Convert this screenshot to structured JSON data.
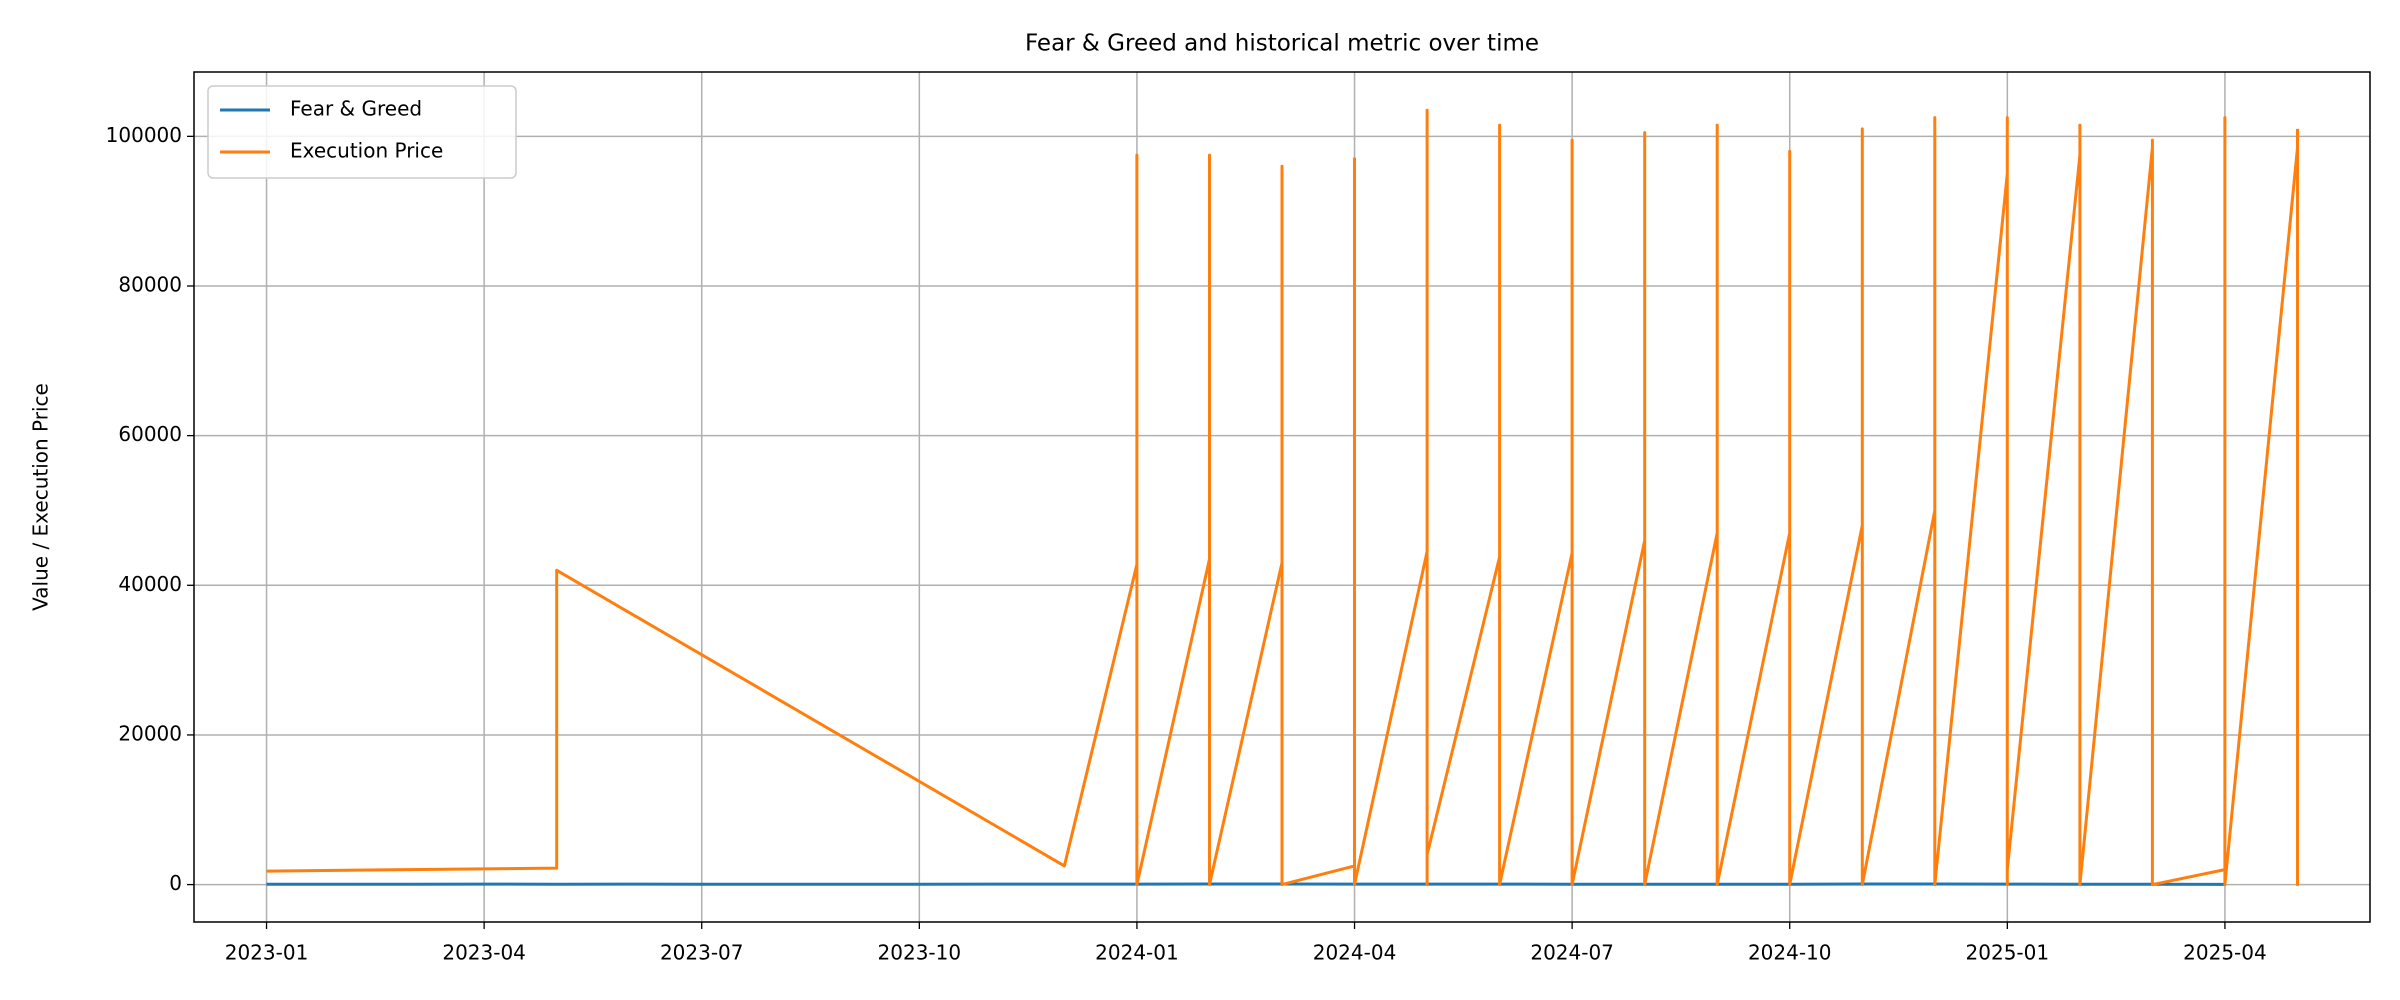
{
  "chart_data": {
    "type": "line",
    "title": "Fear & Greed and historical metric over time",
    "y_label": "Value / Execution Price",
    "xlim": [
      "2022-12",
      "2025-06"
    ],
    "xticks": [
      "2023-01",
      "2023-04",
      "2023-07",
      "2023-10",
      "2024-01",
      "2024-04",
      "2024-07",
      "2024-10",
      "2025-01",
      "2025-04"
    ],
    "ylim": [
      -5000,
      108600
    ],
    "yticks": [
      0,
      20000,
      40000,
      60000,
      80000,
      100000
    ],
    "grid": true,
    "legend": "upper left",
    "series": [
      {
        "name": "Fear & Greed",
        "color": "#1f77b4",
        "x": [
          "2023-01",
          "2023-02",
          "2023-03",
          "2023-04",
          "2023-05",
          "2023-06",
          "2023-07",
          "2023-08",
          "2023-09",
          "2023-10",
          "2023-11",
          "2023-12",
          "2024-01",
          "2024-02",
          "2024-03",
          "2024-04",
          "2024-05",
          "2024-06",
          "2024-07",
          "2024-08",
          "2024-09",
          "2024-10",
          "2024-11",
          "2024-12",
          "2025-01",
          "2025-02",
          "2025-03",
          "2025-04"
        ],
        "values": [
          40,
          55,
          50,
          60,
          55,
          60,
          55,
          45,
          45,
          50,
          65,
          70,
          60,
          75,
          80,
          70,
          65,
          60,
          45,
          35,
          40,
          55,
          75,
          80,
          70,
          50,
          35,
          30
        ]
      },
      {
        "name": "Execution Price",
        "color": "#ff7f0e",
        "x": [
          "2023-01",
          "2023-05",
          "2023-05",
          "2023-12",
          "2024-01",
          "2024-01",
          "2024-01",
          "2024-01",
          "2024-01",
          "2024-01",
          "2024-01",
          "2024-01",
          "2024-01",
          "2024-02",
          "2024-02",
          "2024-02",
          "2024-02",
          "2024-02",
          "2024-02",
          "2024-03",
          "2024-03",
          "2024-03",
          "2024-03",
          "2024-03",
          "2024-04",
          "2024-04",
          "2024-04",
          "2024-04",
          "2024-04",
          "2024-04",
          "2024-04",
          "2024-05",
          "2024-05",
          "2024-05",
          "2024-05",
          "2024-05",
          "2024-05",
          "2024-06",
          "2024-06",
          "2024-06",
          "2024-06",
          "2024-06",
          "2024-06",
          "2024-07",
          "2024-07",
          "2024-07",
          "2024-07",
          "2024-07",
          "2024-07",
          "2024-08",
          "2024-08",
          "2024-08",
          "2024-08",
          "2024-08",
          "2024-08",
          "2024-09",
          "2024-09",
          "2024-09",
          "2024-09",
          "2024-09",
          "2024-09",
          "2024-10",
          "2024-10",
          "2024-10",
          "2024-10",
          "2024-10",
          "2024-11",
          "2024-11",
          "2024-11",
          "2024-11",
          "2024-11",
          "2024-11",
          "2024-12",
          "2024-12",
          "2024-12",
          "2024-12",
          "2024-12",
          "2024-12",
          "2025-01",
          "2025-01",
          "2025-01",
          "2025-01",
          "2025-01",
          "2025-01",
          "2025-02",
          "2025-02",
          "2025-02",
          "2025-02",
          "2025-02",
          "2025-03",
          "2025-03",
          "2025-03",
          "2025-03",
          "2025-03",
          "2025-03",
          "2025-04",
          "2025-04",
          "2025-04",
          "2025-04",
          "2025-04",
          "2025-04",
          "2025-04",
          "2025-05",
          "2025-05",
          "2025-05"
        ],
        "values": [
          1800,
          2200,
          42000,
          2500,
          42800,
          0,
          3500,
          0,
          65000,
          0,
          70000,
          97500,
          0,
          43500,
          0,
          64000,
          69000,
          97500,
          0,
          43000,
          0,
          68000,
          96000,
          0,
          2500,
          63000,
          0,
          71000,
          56000,
          97000,
          0,
          44500,
          0,
          72000,
          57000,
          103500,
          4000,
          43800,
          0,
          53000,
          75000,
          101500,
          0,
          44300,
          0,
          69500,
          0,
          99500,
          0,
          46000,
          0,
          69000,
          76500,
          100500,
          0,
          47000,
          0,
          59500,
          76500,
          101500,
          0,
          47000,
          0,
          80000,
          98000,
          0,
          48000,
          0,
          67000,
          85000,
          101000,
          0,
          50000,
          0,
          69500,
          89000,
          102500,
          0,
          95000,
          0,
          102500,
          86000,
          95000,
          2000,
          97500,
          0,
          101500,
          87000,
          0,
          98500,
          0,
          99500,
          94000,
          87000,
          0,
          2000,
          99000,
          0,
          102500,
          88000,
          85000,
          0,
          98500,
          0,
          101000
        ]
      }
    ]
  }
}
